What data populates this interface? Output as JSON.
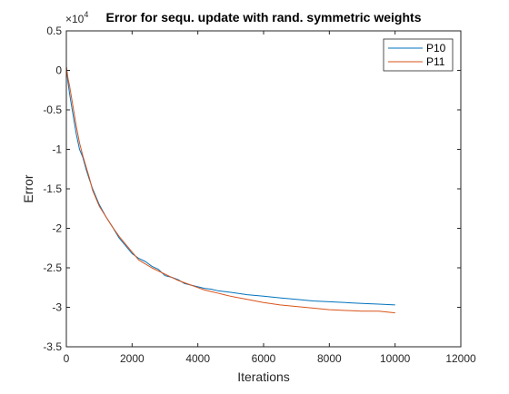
{
  "chart_data": {
    "type": "line",
    "title": "Error for sequ. update with rand. symmetric weights",
    "xlabel": "Iterations",
    "ylabel": "Error",
    "xlim": [
      0,
      12000
    ],
    "ylim": [
      -3.5,
      0.5
    ],
    "y_exponent_label": "×10",
    "y_exponent": "4",
    "x_ticks": [
      0,
      2000,
      4000,
      6000,
      8000,
      10000,
      12000
    ],
    "x_tick_labels": [
      "0",
      "2000",
      "4000",
      "6000",
      "8000",
      "10000",
      "12000"
    ],
    "y_ticks": [
      0.5,
      0,
      -0.5,
      -1,
      -1.5,
      -2,
      -2.5,
      -3,
      -3.5
    ],
    "y_tick_labels": [
      "0.5",
      "0",
      "-0.5",
      "-1",
      "-1.5",
      "-2",
      "-2.5",
      "-3",
      "-3.5"
    ],
    "grid": false,
    "legend_position": "top-right",
    "series": [
      {
        "name": "P10",
        "color": "#0072BD",
        "x": [
          0,
          50,
          100,
          200,
          300,
          400,
          500,
          600,
          700,
          800,
          1000,
          1200,
          1400,
          1600,
          1800,
          2000,
          2200,
          2400,
          2600,
          2800,
          3000,
          3200,
          3400,
          3600,
          3800,
          4000,
          4200,
          4400,
          4600,
          4800,
          5000,
          5500,
          6000,
          6500,
          7000,
          7500,
          8000,
          8500,
          9000,
          9500,
          10000
        ],
        "y": [
          0.05,
          -0.15,
          -0.3,
          -0.55,
          -0.8,
          -1.0,
          -1.1,
          -1.25,
          -1.38,
          -1.5,
          -1.7,
          -1.85,
          -1.98,
          -2.12,
          -2.22,
          -2.32,
          -2.38,
          -2.42,
          -2.48,
          -2.52,
          -2.6,
          -2.62,
          -2.65,
          -2.7,
          -2.72,
          -2.74,
          -2.76,
          -2.77,
          -2.79,
          -2.8,
          -2.81,
          -2.84,
          -2.86,
          -2.88,
          -2.9,
          -2.92,
          -2.93,
          -2.94,
          -2.95,
          -2.96,
          -2.97
        ]
      },
      {
        "name": "P11",
        "color": "#D95319",
        "x": [
          0,
          50,
          100,
          200,
          300,
          400,
          500,
          600,
          700,
          800,
          1000,
          1200,
          1400,
          1600,
          1800,
          2000,
          2200,
          2400,
          2600,
          2800,
          3000,
          3200,
          3400,
          3600,
          3800,
          4000,
          4200,
          4400,
          4600,
          4800,
          5000,
          5500,
          6000,
          6500,
          7000,
          7500,
          8000,
          8500,
          9000,
          9500,
          10000
        ],
        "y": [
          0.05,
          -0.1,
          -0.2,
          -0.45,
          -0.7,
          -0.92,
          -1.08,
          -1.22,
          -1.36,
          -1.52,
          -1.72,
          -1.85,
          -1.98,
          -2.1,
          -2.2,
          -2.3,
          -2.4,
          -2.45,
          -2.5,
          -2.54,
          -2.58,
          -2.62,
          -2.66,
          -2.69,
          -2.72,
          -2.75,
          -2.78,
          -2.8,
          -2.82,
          -2.84,
          -2.86,
          -2.9,
          -2.94,
          -2.97,
          -2.99,
          -3.01,
          -3.03,
          -3.04,
          -3.05,
          -3.05,
          -3.07
        ]
      }
    ]
  }
}
